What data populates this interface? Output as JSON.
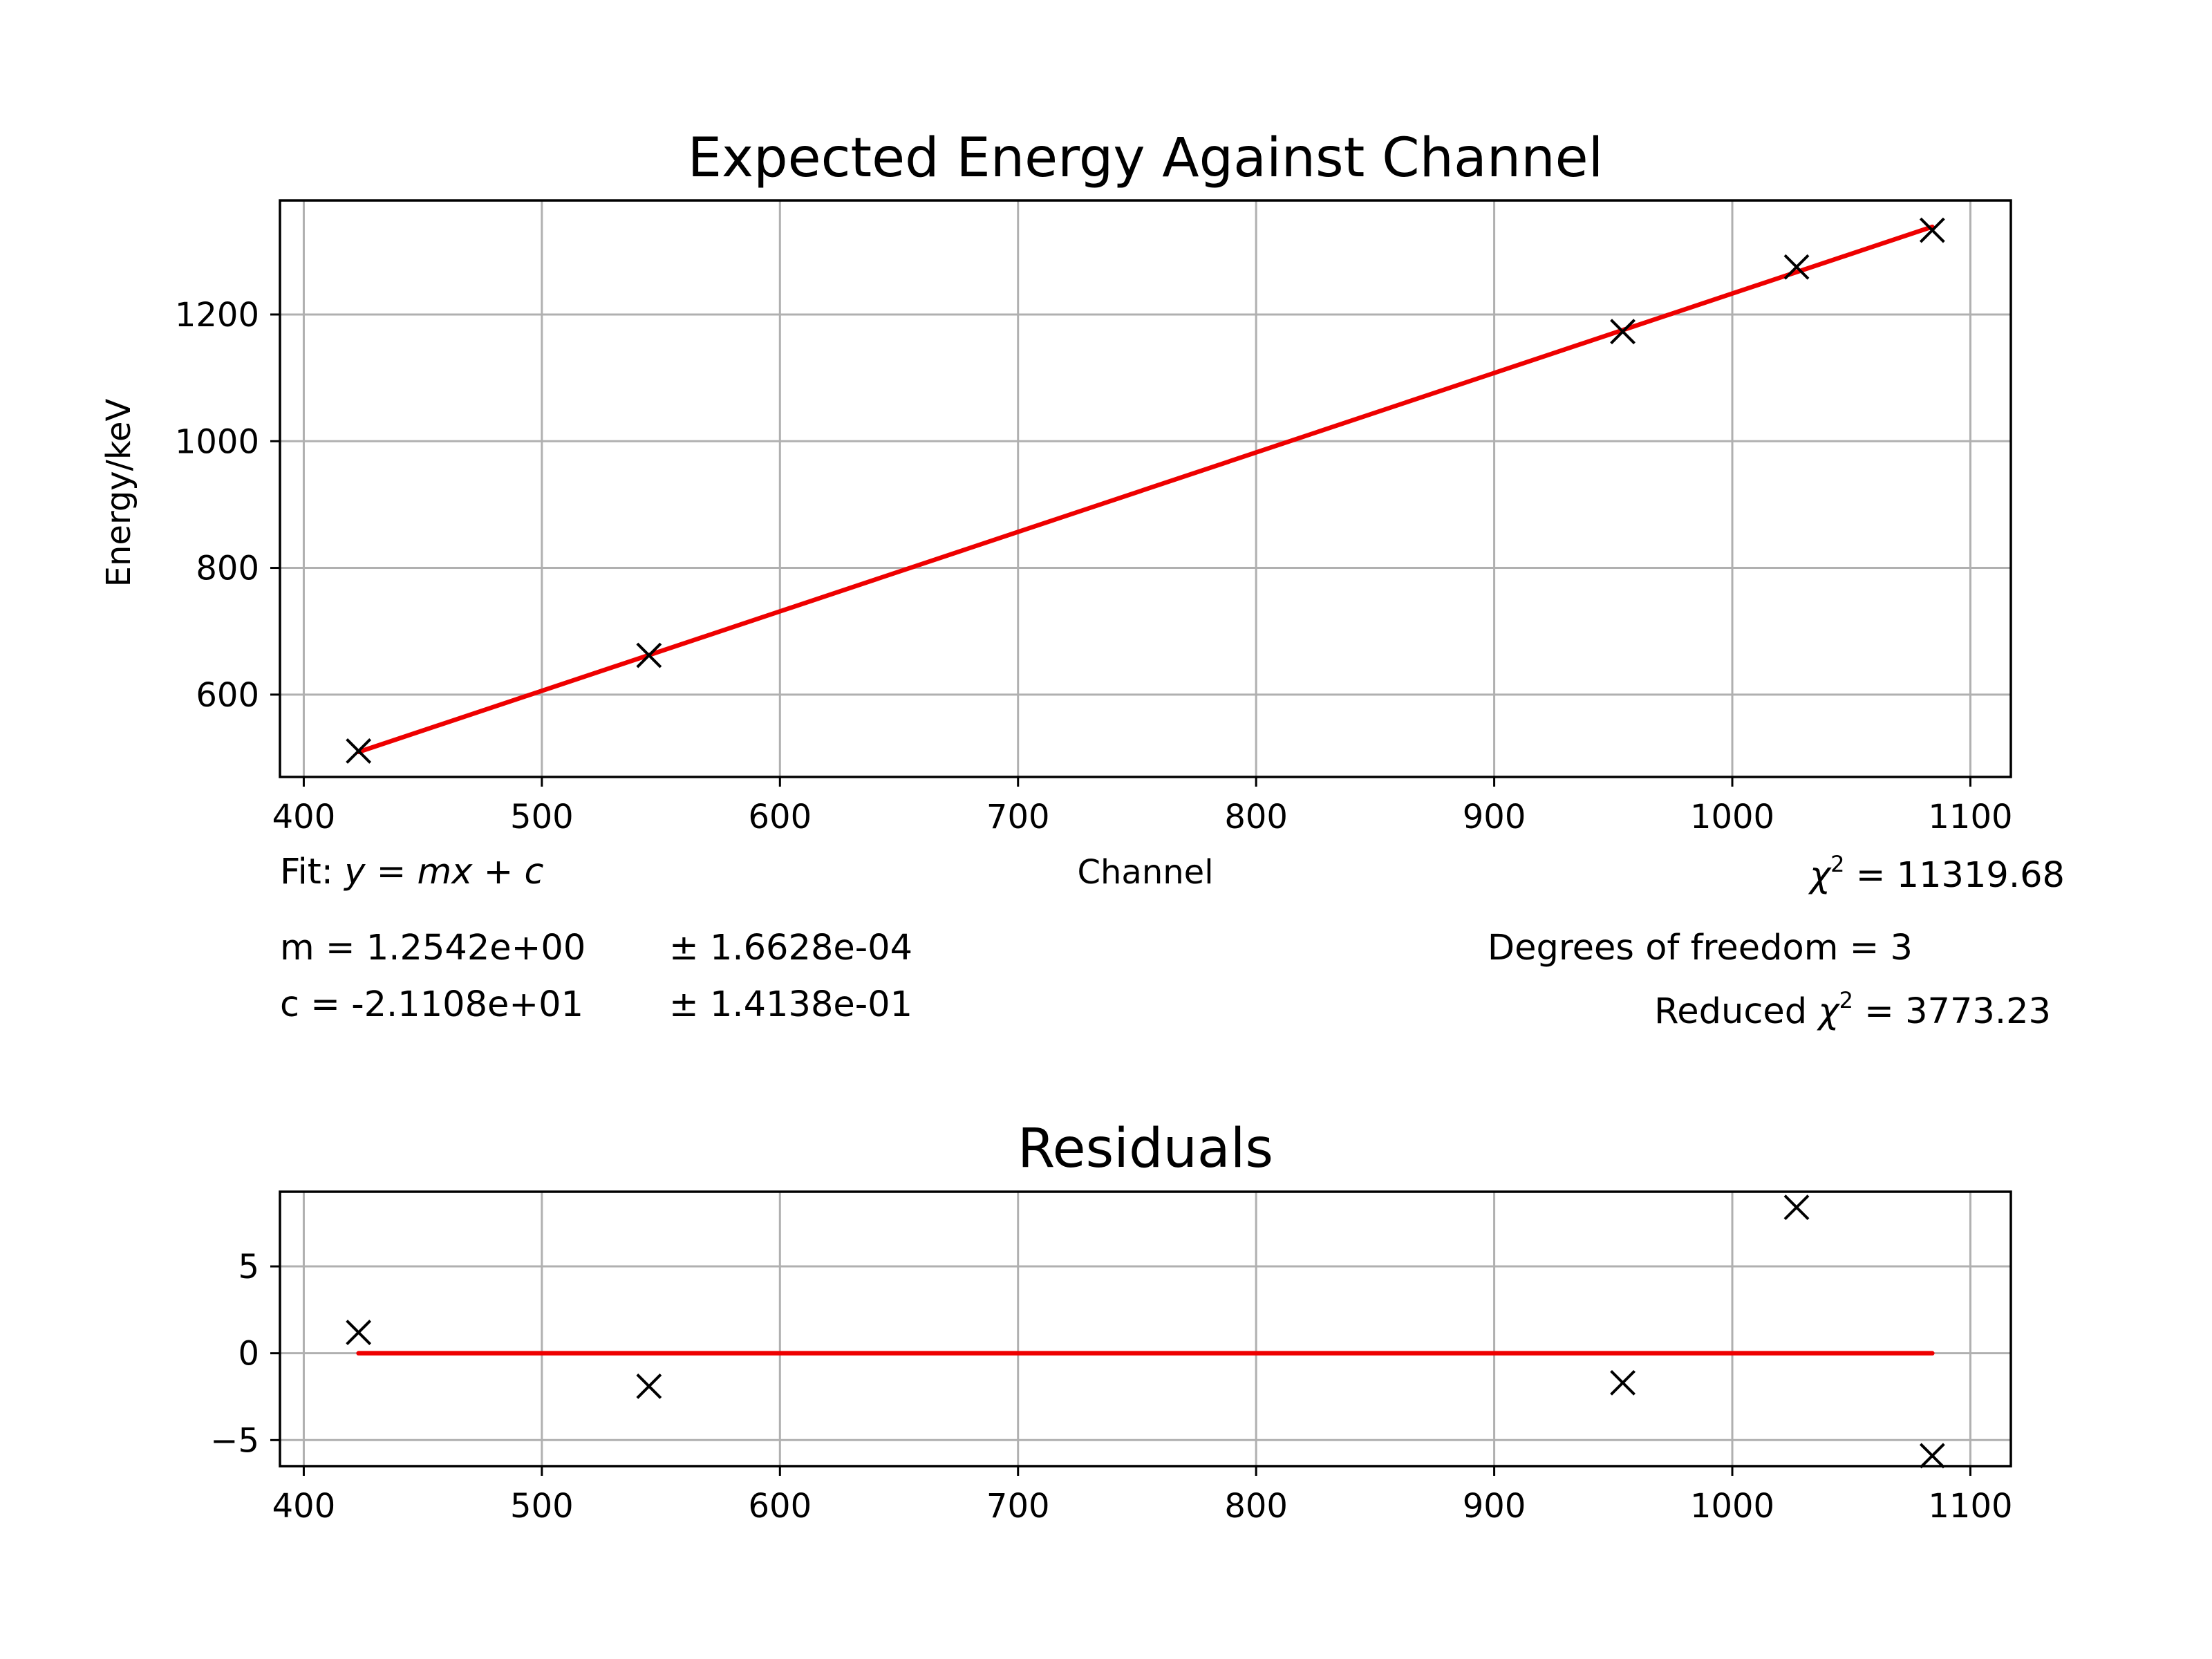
{
  "chart_data": [
    {
      "type": "scatter",
      "title": "Expected Energy Against Channel",
      "xlabel": "Channel",
      "ylabel": "Energy/keV",
      "xlim": [
        390,
        1117
      ],
      "ylim": [
        470,
        1380
      ],
      "xticks": [
        400,
        500,
        600,
        700,
        800,
        900,
        1000,
        1100
      ],
      "yticks": [
        600,
        800,
        1000,
        1200
      ],
      "grid": true,
      "points": [
        {
          "x": 423,
          "y": 511
        },
        {
          "x": 545,
          "y": 662
        },
        {
          "x": 954,
          "y": 1173
        },
        {
          "x": 1027,
          "y": 1275
        },
        {
          "x": 1084,
          "y": 1333
        }
      ],
      "fit": {
        "m": 1.2542,
        "c": -21.108,
        "x_range": [
          423,
          1084
        ]
      },
      "annotations": {
        "fit_label": "Fit: ",
        "fit_equation": "y = mx + c",
        "m_text": "m = 1.2542e+00",
        "m_err": "± 1.6628e-04",
        "c_text": "c = -2.1108e+01",
        "c_err": "± 1.4138e-01",
        "chi2_value": " = 11319.68",
        "dof_text": "Degrees of freedom = 3",
        "reduced_prefix": "Reduced ",
        "reduced_value": " = 3773.23"
      }
    },
    {
      "type": "scatter",
      "title": "Residuals",
      "xlim": [
        390,
        1117
      ],
      "ylim": [
        -6.5,
        9.3
      ],
      "xticks": [
        400,
        500,
        600,
        700,
        800,
        900,
        1000,
        1100
      ],
      "yticks": [
        5,
        0,
        -5
      ],
      "ytick_labels": [
        "5",
        "0",
        "−5"
      ],
      "grid": true,
      "points": [
        {
          "x": 423,
          "y": 1.2
        },
        {
          "x": 545,
          "y": -1.9
        },
        {
          "x": 954,
          "y": -1.7
        },
        {
          "x": 1027,
          "y": 8.4
        },
        {
          "x": 1084,
          "y": -5.9
        }
      ],
      "zero_line_range": [
        423,
        1084
      ]
    }
  ]
}
